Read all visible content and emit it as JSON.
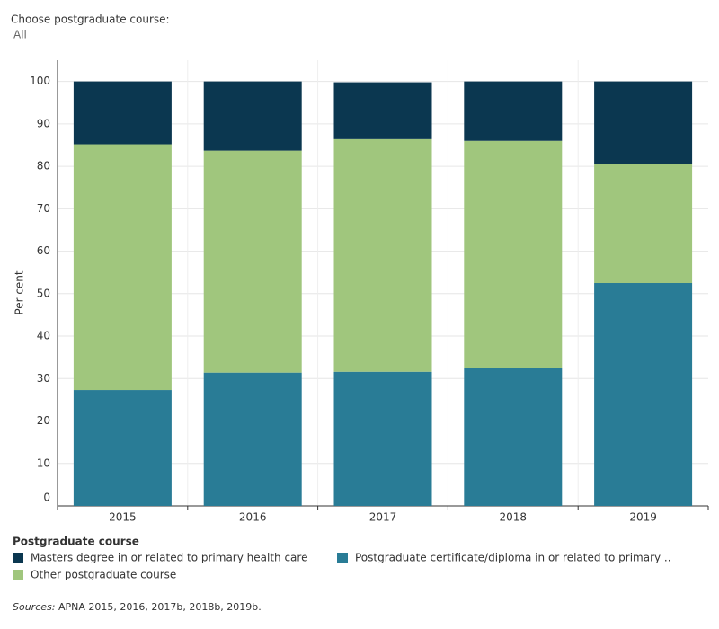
{
  "filter_label": "Choose postgraduate course:",
  "filter_value": "All",
  "chart_data": {
    "type": "stacked_bar",
    "y_label": "Per cent",
    "categories": [
      "2015",
      "2016",
      "2017",
      "2018",
      "2019"
    ],
    "series": [
      {
        "name": "Postgraduate certificate/diploma in or related to primary ..",
        "color": "#297c96",
        "values": [
          27.3,
          31.4,
          31.6,
          32.4,
          52.5
        ]
      },
      {
        "name": "Other postgraduate course",
        "color": "#a0c67d",
        "values": [
          57.9,
          52.3,
          54.8,
          53.6,
          28.0
        ]
      },
      {
        "name": "Masters degree in or related to primary health care",
        "color": "#0b3750",
        "values": [
          14.8,
          16.3,
          13.4,
          14.0,
          19.5
        ]
      }
    ],
    "ylim": [
      0,
      105
    ],
    "yticks": [
      0,
      10,
      20,
      30,
      40,
      50,
      60,
      70,
      80,
      90,
      100
    ],
    "grid": true,
    "legend_title": "Postgraduate course"
  },
  "sources_label": "Sources:",
  "sources_text": "APNA 2015, 2016, 2017b, 2018b, 2019b."
}
